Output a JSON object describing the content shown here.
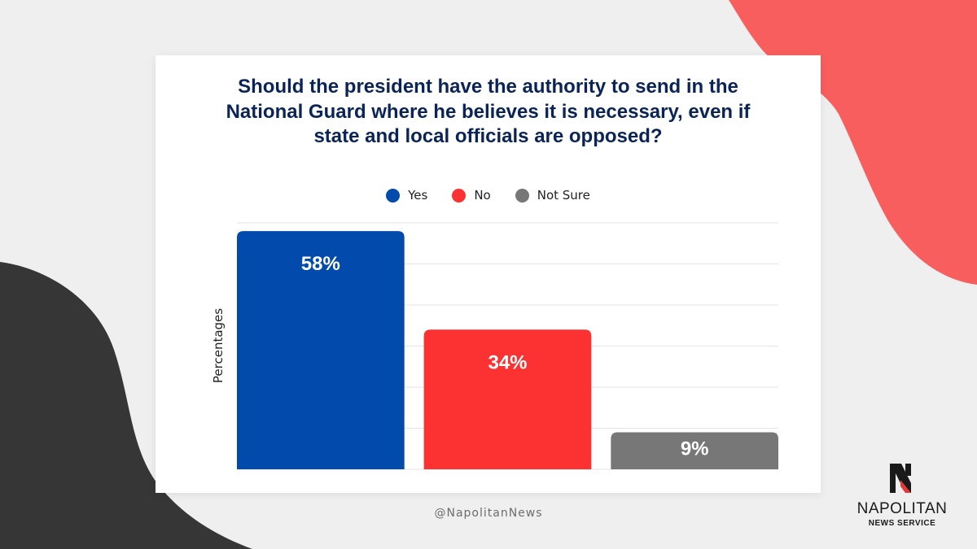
{
  "colors": {
    "background": "#efefef",
    "coral_shape": "#f95e5e",
    "dark_shape": "#363636",
    "title": "#0b2457",
    "grid": "#e3e3e3"
  },
  "chart_data": {
    "type": "bar",
    "title": "Should the president have the authority to send in the National Guard where he believes it is necessary, even if state and local officials are opposed?",
    "ylabel": "Percentages",
    "xlabel": "",
    "ylim": [
      0,
      60
    ],
    "grid": true,
    "legend_position": "top-center",
    "categories": [
      "Yes",
      "No",
      "Not Sure"
    ],
    "series": [
      {
        "name": "Yes",
        "value": 58,
        "label": "58%",
        "color": "#034aad"
      },
      {
        "name": "No",
        "value": 34,
        "label": "34%",
        "color": "#fc3232"
      },
      {
        "name": "Not Sure",
        "value": 9,
        "label": "9%",
        "color": "#777777"
      }
    ]
  },
  "footer": {
    "handle": "@NapolitanNews",
    "brand_name": "NAPOLITAN",
    "brand_sub": "NEWS SERVICE"
  }
}
